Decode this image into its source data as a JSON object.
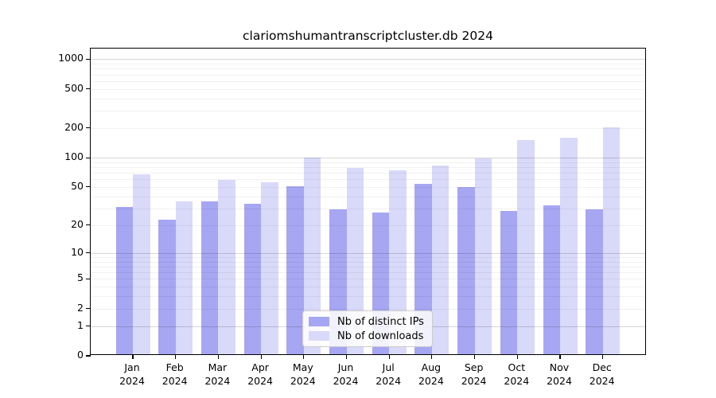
{
  "title": "clariomshumantranscriptcluster.db 2024",
  "colors": {
    "bar_ips": "#a6a6f2",
    "bar_downloads": "#d9d9f9",
    "axis": "#000000",
    "grid_major": "rgba(0,0,0,0.16)",
    "grid_minor": "rgba(0,0,0,0.055)",
    "legend_border": "#cccccc"
  },
  "chart_data": {
    "type": "bar",
    "title": "clariomshumantranscriptcluster.db 2024",
    "categories": [
      "Jan 2024",
      "Feb 2024",
      "Mar 2024",
      "Apr 2024",
      "May 2024",
      "Jun 2024",
      "Jul 2024",
      "Aug 2024",
      "Sep 2024",
      "Oct 2024",
      "Nov 2024",
      "Dec 2024"
    ],
    "series": [
      {
        "name": "Nb of distinct IPs",
        "color": "#a6a6f2",
        "values": [
          30,
          22,
          34,
          32,
          49,
          28,
          26,
          52,
          48,
          27,
          31,
          28
        ]
      },
      {
        "name": "Nb of downloads",
        "color": "#d9d9f9",
        "values": [
          65,
          34,
          57,
          54,
          97,
          75,
          71,
          80,
          95,
          145,
          155,
          195
        ]
      }
    ],
    "xlabel": "",
    "ylabel": "",
    "y_scale": "log1p",
    "y_tick_labels": [
      0,
      1,
      2,
      5,
      10,
      20,
      50,
      100,
      200,
      500,
      1000
    ],
    "y_major_gridlines": [
      1,
      10,
      100,
      1000
    ],
    "y_minor_gridlines": [
      2,
      3,
      4,
      5,
      6,
      7,
      8,
      9,
      20,
      30,
      40,
      50,
      60,
      70,
      80,
      90,
      200,
      300,
      400,
      500,
      600,
      700,
      800,
      900
    ],
    "ylim": [
      0,
      1150
    ],
    "grid": true,
    "legend_position": "inside-bottom-center"
  }
}
